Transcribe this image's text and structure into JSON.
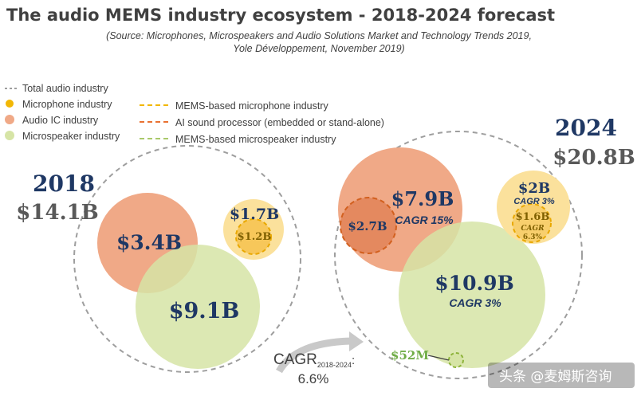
{
  "title": "The audio MEMS industry ecosystem - 2018-2024 forecast",
  "source_line1": "(Source: Microphones, Microspeakers and Audio Solutions Market and Technology Trends 2019,",
  "source_line2": "Yole Développement, November 2019)",
  "legend": [
    {
      "label": "Total audio industry",
      "style": "dashed-gray"
    },
    {
      "label": "Microphone industry",
      "color": "#f2b705"
    },
    {
      "label": "Audio IC industry",
      "color": "#f0a987"
    },
    {
      "label": "Microspeaker industry",
      "color": "#d6e4a6"
    }
  ],
  "legend_dashed": [
    {
      "label": "MEMS-based microphone industry",
      "color": "#f2b705"
    },
    {
      "label": "AI sound processor (embedded or stand-alone)",
      "color": "#e97132"
    },
    {
      "label": "MEMS-based microspeaker industry",
      "color": "#a9c96a"
    }
  ],
  "colors": {
    "microphone": "#fbe19c",
    "audio_ic": "#f0a987",
    "microspeaker": "#d9e7a7",
    "total": "#9e9e9e"
  },
  "chart_data": {
    "type": "bubble",
    "unit": "$B",
    "years": [
      {
        "year": "2018",
        "total_label": "$14.1B",
        "total": 14.1,
        "segments": [
          {
            "name": "Audio IC industry",
            "label": "$3.4B",
            "value": 3.4
          },
          {
            "name": "Microphone industry",
            "label": "$1.7B",
            "value": 1.7,
            "sub": {
              "name": "MEMS-based microphone industry",
              "label": "$1.2B",
              "value": 1.2
            }
          },
          {
            "name": "Microspeaker industry",
            "label": "$9.1B",
            "value": 9.1
          }
        ]
      },
      {
        "year": "2024",
        "total_label": "$20.8B",
        "total": 20.8,
        "segments": [
          {
            "name": "Audio IC industry",
            "label": "$7.9B",
            "value": 7.9,
            "cagr": "CAGR 15%",
            "sub": {
              "name": "AI sound processor (embedded or stand-alone)",
              "label": "$2.7B",
              "value": 2.7
            }
          },
          {
            "name": "Microphone industry",
            "label": "$2B",
            "value": 2.0,
            "cagr": "CAGR 3%",
            "sub": {
              "name": "MEMS-based microphone industry",
              "label": "$1.6B",
              "value": 1.6,
              "cagr_word": "CAGR",
              "cagr_pct": "6.3%"
            }
          },
          {
            "name": "Microspeaker industry",
            "label": "$10.9B",
            "value": 10.9,
            "cagr": "CAGR 3%",
            "sub": {
              "name": "MEMS-based microspeaker industry",
              "label": "$52M",
              "value": 0.052
            }
          }
        ]
      }
    ],
    "overall_cagr": {
      "label": "CAGR",
      "subscript": "2018-2024",
      "colon": ":",
      "value": "6.6%"
    }
  },
  "watermark": "头条 @麦姆斯咨询"
}
